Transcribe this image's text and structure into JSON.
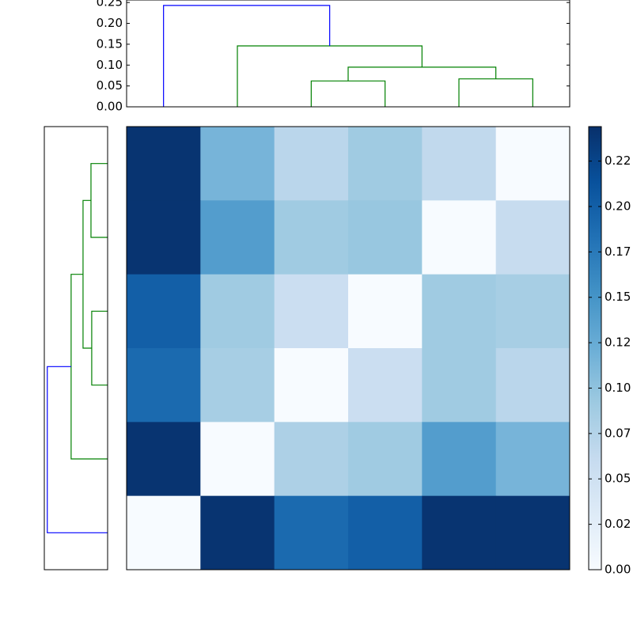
{
  "chart_data": [
    {
      "type": "heatmap",
      "cmap": "Blues",
      "clim": [
        0,
        0.244
      ],
      "values": [
        [
          0.24,
          0.115,
          0.07,
          0.09,
          0.065,
          0.0
        ],
        [
          0.24,
          0.14,
          0.09,
          0.095,
          0.0,
          0.06
        ],
        [
          0.2,
          0.09,
          0.055,
          0.0,
          0.09,
          0.085
        ],
        [
          0.19,
          0.085,
          0.0,
          0.055,
          0.09,
          0.07
        ],
        [
          0.24,
          0.0,
          0.08,
          0.09,
          0.14,
          0.115
        ],
        [
          0.0,
          0.24,
          0.19,
          0.2,
          0.24,
          0.24
        ]
      ],
      "cbar_ticks": [
        {
          "value": 0,
          "label": "0.00"
        },
        {
          "value": 0.025,
          "label": "0.02"
        },
        {
          "value": 0.05,
          "label": "0.05"
        },
        {
          "value": 0.075,
          "label": "0.07"
        },
        {
          "value": 0.1,
          "label": "0.10"
        },
        {
          "value": 0.125,
          "label": "0.12"
        },
        {
          "value": 0.15,
          "label": "0.15"
        },
        {
          "value": 0.175,
          "label": "0.17"
        },
        {
          "value": 0.2,
          "label": "0.20"
        },
        {
          "value": 0.225,
          "label": "0.22"
        }
      ]
    },
    {
      "type": "dendrogram",
      "orientation": "top",
      "linkage": [
        [
          2,
          3,
          0.062
        ],
        [
          4,
          5,
          0.067
        ],
        [
          6,
          7,
          0.095
        ],
        [
          1,
          8,
          0.146
        ],
        [
          0,
          9,
          0.243
        ]
      ],
      "link_colors": [
        "#008000",
        "#008000",
        "#008000",
        "#008000",
        "#0000ff"
      ],
      "ylim": [
        0,
        0.256
      ],
      "yticks": [
        {
          "value": 0,
          "label": "0.00"
        },
        {
          "value": 0.05,
          "label": "0.05"
        },
        {
          "value": 0.1,
          "label": "0.10"
        },
        {
          "value": 0.15,
          "label": "0.15"
        },
        {
          "value": 0.2,
          "label": "0.20"
        },
        {
          "value": 0.25,
          "label": "0.25"
        }
      ]
    },
    {
      "type": "dendrogram",
      "orientation": "left",
      "linkage": [
        [
          0,
          1,
          0.067
        ],
        [
          2,
          3,
          0.064
        ],
        [
          6,
          7,
          0.099
        ],
        [
          8,
          4,
          0.147
        ],
        [
          9,
          5,
          0.243
        ]
      ],
      "link_colors": [
        "#008000",
        "#008000",
        "#008000",
        "#008000",
        "#0000ff"
      ],
      "xlim": [
        0.255,
        0
      ]
    }
  ]
}
